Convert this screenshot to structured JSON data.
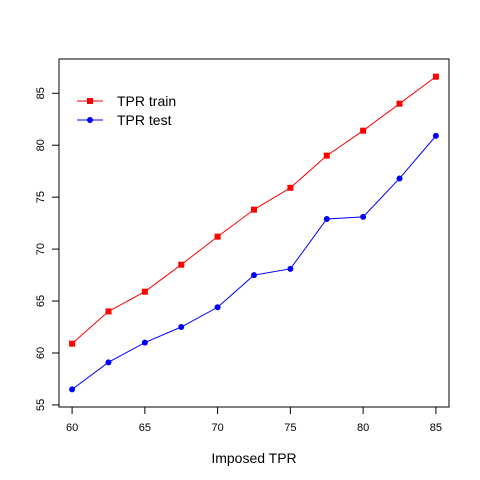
{
  "chart_data": {
    "type": "line",
    "title": "",
    "xlabel": "Imposed TPR",
    "ylabel": "",
    "x": [
      60,
      62.5,
      65,
      67.5,
      70,
      72.5,
      75,
      77.5,
      80,
      82.5,
      85
    ],
    "xlim": [
      59.1,
      85.9
    ],
    "ylim": [
      54.8,
      88.3
    ],
    "xticks": [
      "60",
      "65",
      "70",
      "75",
      "80",
      "85"
    ],
    "yticks": [
      "55",
      "60",
      "65",
      "70",
      "75",
      "80",
      "85"
    ],
    "grid": false,
    "legend_position": "top-left",
    "series": [
      {
        "name": "TPR train",
        "color": "#ff0000",
        "marker": "square",
        "values": [
          60.9,
          64.0,
          65.9,
          68.5,
          71.2,
          73.8,
          75.9,
          79.0,
          81.4,
          84.0,
          86.6
        ]
      },
      {
        "name": "TPR test",
        "color": "#0000ff",
        "marker": "circle",
        "values": [
          56.5,
          59.1,
          61.0,
          62.5,
          64.4,
          67.5,
          68.1,
          72.9,
          73.1,
          76.8,
          80.9
        ]
      }
    ]
  }
}
